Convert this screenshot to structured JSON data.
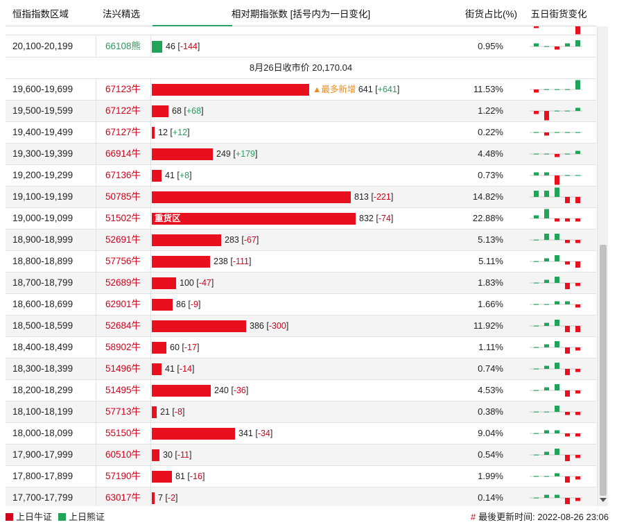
{
  "header": {
    "range_label": "恒指指数区域",
    "warrant_label": "法兴精选",
    "change_label": "相对期指张数 [括号内为一日变化]",
    "ratio_label": "街货占比(%)",
    "five_day_label": "五日街货变化"
  },
  "close_label": "8月26日收市价 20,170.04",
  "bar_scale_max": 832,
  "rows_above": [
    {
      "range": "20,100-20,199",
      "warrant": "66108熊",
      "side": "bear",
      "count": 46,
      "delta": "-144",
      "ratio": "0.95%",
      "spark": [
        1,
        0,
        -1,
        1,
        2
      ]
    }
  ],
  "rows_below": [
    {
      "range": "19,600-19,699",
      "warrant": "67123牛",
      "side": "bull",
      "count": 641,
      "delta": "+641",
      "tag": "▲最多新增",
      "ratio": "11.53%",
      "spark": [
        -1,
        0,
        0,
        0,
        3
      ]
    },
    {
      "range": "19,500-19,599",
      "warrant": "67122牛",
      "side": "bull",
      "count": 68,
      "delta": "+68",
      "ratio": "1.22%",
      "spark": [
        -1,
        -3,
        0,
        0,
        1
      ]
    },
    {
      "range": "19,400-19,499",
      "warrant": "67127牛",
      "side": "bull",
      "count": 12,
      "delta": "+12",
      "ratio": "0.22%",
      "spark": [
        0,
        -1,
        0,
        0,
        0
      ]
    },
    {
      "range": "19,300-19,399",
      "warrant": "66914牛",
      "side": "bull",
      "count": 249,
      "delta": "+179",
      "ratio": "4.48%",
      "spark": [
        0,
        0,
        -1,
        0,
        1
      ]
    },
    {
      "range": "19,200-19,299",
      "warrant": "67136牛",
      "side": "bull",
      "count": 41,
      "delta": "+8",
      "ratio": "0.73%",
      "spark": [
        1,
        1,
        -3,
        0,
        0
      ]
    },
    {
      "range": "19,100-19,199",
      "warrant": "50785牛",
      "side": "bull",
      "count": 813,
      "delta": "-221",
      "ratio": "14.82%",
      "spark": [
        2,
        2,
        3,
        -2,
        -2
      ]
    },
    {
      "range": "19,000-19,099",
      "warrant": "51502牛",
      "side": "bull",
      "count": 832,
      "delta": "-74",
      "inbar": "重货区",
      "ratio": "22.88%",
      "spark": [
        1,
        3,
        -1,
        -1,
        -1
      ]
    },
    {
      "range": "18,900-18,999",
      "warrant": "52691牛",
      "side": "bull",
      "count": 283,
      "delta": "-67",
      "ratio": "5.13%",
      "spark": [
        0,
        2,
        2,
        -1,
        -1
      ]
    },
    {
      "range": "18,800-18,899",
      "warrant": "57756牛",
      "side": "bull",
      "count": 238,
      "delta": "-111",
      "ratio": "5.11%",
      "spark": [
        0,
        1,
        2,
        -1,
        -2
      ]
    },
    {
      "range": "18,700-18,799",
      "warrant": "52689牛",
      "side": "bull",
      "count": 100,
      "delta": "-47",
      "ratio": "1.83%",
      "spark": [
        0,
        1,
        2,
        -2,
        -1
      ]
    },
    {
      "range": "18,600-18,699",
      "warrant": "62901牛",
      "side": "bull",
      "count": 86,
      "delta": "-9",
      "ratio": "1.66%",
      "spark": [
        0,
        0,
        1,
        1,
        -1
      ]
    },
    {
      "range": "18,500-18,599",
      "warrant": "52684牛",
      "side": "bull",
      "count": 386,
      "delta": "-300",
      "ratio": "11.92%",
      "spark": [
        0,
        1,
        2,
        -2,
        -2
      ]
    },
    {
      "range": "18,400-18,499",
      "warrant": "58902牛",
      "side": "bull",
      "count": 60,
      "delta": "-17",
      "ratio": "1.11%",
      "spark": [
        0,
        1,
        2,
        -2,
        -1
      ]
    },
    {
      "range": "18,300-18,399",
      "warrant": "51496牛",
      "side": "bull",
      "count": 41,
      "delta": "-14",
      "ratio": "0.74%",
      "spark": [
        0,
        1,
        2,
        -2,
        -1
      ]
    },
    {
      "range": "18,200-18,299",
      "warrant": "51495牛",
      "side": "bull",
      "count": 240,
      "delta": "-36",
      "ratio": "4.53%",
      "spark": [
        0,
        1,
        2,
        -2,
        -1
      ]
    },
    {
      "range": "18,100-18,199",
      "warrant": "57713牛",
      "side": "bull",
      "count": 21,
      "delta": "-8",
      "ratio": "0.38%",
      "spark": [
        0,
        0,
        2,
        -1,
        -1
      ]
    },
    {
      "range": "18,000-18,099",
      "warrant": "55150牛",
      "side": "bull",
      "count": 341,
      "delta": "-34",
      "ratio": "9.04%",
      "spark": [
        0,
        1,
        1,
        -1,
        -1
      ]
    },
    {
      "range": "17,900-17,999",
      "warrant": "60510牛",
      "side": "bull",
      "count": 30,
      "delta": "-11",
      "ratio": "0.54%",
      "spark": [
        0,
        1,
        2,
        -2,
        -1
      ]
    },
    {
      "range": "17,800-17,899",
      "warrant": "57190牛",
      "side": "bull",
      "count": 81,
      "delta": "-16",
      "ratio": "1.99%",
      "spark": [
        0,
        0,
        1,
        -2,
        -1
      ]
    },
    {
      "range": "17,700-17,799",
      "warrant": "63017牛",
      "side": "bull",
      "count": 7,
      "delta": "-2",
      "ratio": "0.14%",
      "spark": [
        0,
        1,
        1,
        -2,
        -1
      ]
    }
  ],
  "legend": {
    "bull_label": "上日牛证",
    "bear_label": "上日熊证",
    "bull_color": "#d0021b",
    "bear_color": "#22a35a"
  },
  "updated": "最後更新时间: 2022-08-26 23:06",
  "updated_icon": "#"
}
